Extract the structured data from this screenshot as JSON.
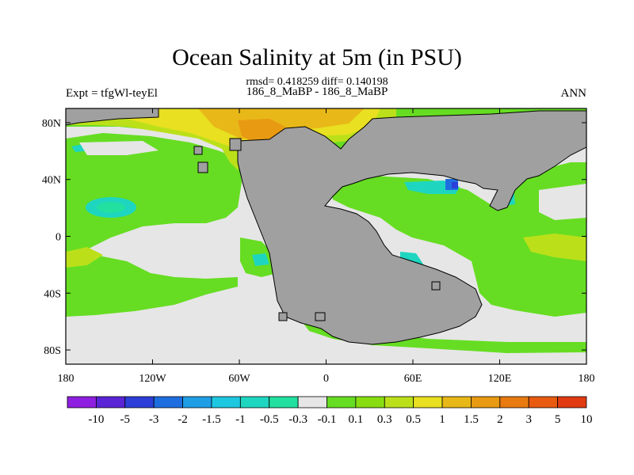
{
  "chart_data": {
    "type": "heatmap",
    "title": "Ocean Salinity at 5m (in PSU)",
    "stats": "rmsd= 0.418259 diff= 0.140198",
    "subtitle": "186_8_MaBP - 186_8_MaBP",
    "left_label": "Expt = tfgWl-teyEl",
    "right_label": "ANN",
    "xlim": [
      -180,
      180
    ],
    "ylim": [
      -90,
      90
    ],
    "x_ticks": [
      {
        "value": -180,
        "label": "180"
      },
      {
        "value": -120,
        "label": "120W"
      },
      {
        "value": -60,
        "label": "60W"
      },
      {
        "value": 0,
        "label": "0"
      },
      {
        "value": 60,
        "label": "60E"
      },
      {
        "value": 120,
        "label": "120E"
      },
      {
        "value": 180,
        "label": "180"
      }
    ],
    "y_ticks": [
      {
        "value": 80,
        "label": "80N"
      },
      {
        "value": 40,
        "label": "40N"
      },
      {
        "value": 0,
        "label": "0"
      },
      {
        "value": -40,
        "label": "40S"
      },
      {
        "value": -80,
        "label": "80S"
      }
    ],
    "colorbar": {
      "colors": [
        "#8f1fe0",
        "#5b23d6",
        "#2c3fd8",
        "#1f6ee0",
        "#1f9ee6",
        "#1ec7e0",
        "#1ed6c0",
        "#22e0a0",
        "#e6e6e6",
        "#66dd22",
        "#88dd11",
        "#bbe01a",
        "#e8e020",
        "#e8b818",
        "#e89a12",
        "#e87a10",
        "#e85a10",
        "#e03a10"
      ],
      "labels": [
        "-10",
        "-5",
        "-3",
        "-2",
        "-1.5",
        "-1",
        "-0.5",
        "-0.3",
        "-0.1",
        "0.1",
        "0.3",
        "0.5",
        "1",
        "1.5",
        "2",
        "3",
        "5",
        "10"
      ]
    }
  }
}
